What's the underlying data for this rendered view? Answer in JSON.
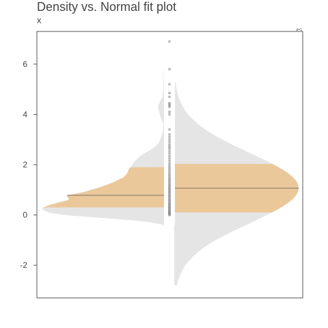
{
  "chart_data": {
    "type": "violin",
    "title": "Density vs. Normal fit plot",
    "subtitle": "x",
    "legend_label": "p=1",
    "legend_position": "top-right",
    "grid": false,
    "ylim": [
      -3.3,
      7.3
    ],
    "y_ticks": [
      -2,
      0,
      2,
      4,
      6
    ],
    "left_half": {
      "name": "Density",
      "median": 0.78,
      "q1": 0.3,
      "q3": 1.9,
      "min": -0.4,
      "max": 7.1
    },
    "right_half": {
      "name": "Normal fit",
      "mean": 1.07,
      "q1": 0.1,
      "q3": 2.03,
      "min": -2.8,
      "max": 5.3
    },
    "points": [
      0.0,
      0.02,
      0.05,
      0.08,
      0.1,
      0.13,
      0.16,
      0.2,
      0.23,
      0.27,
      0.3,
      0.34,
      0.38,
      0.42,
      0.46,
      0.5,
      0.55,
      0.6,
      0.65,
      0.7,
      0.75,
      0.8,
      0.85,
      0.9,
      0.95,
      1.0,
      1.05,
      1.1,
      1.15,
      1.2,
      1.26,
      1.32,
      1.38,
      1.44,
      1.5,
      1.57,
      1.64,
      1.72,
      1.8,
      1.88,
      1.96,
      2.05,
      2.15,
      2.25,
      2.35,
      2.45,
      2.55,
      2.65,
      2.72,
      2.8,
      2.9,
      3.0,
      3.1,
      3.2,
      3.4,
      4.0,
      4.1,
      4.3,
      4.35,
      4.4,
      4.45,
      4.7,
      4.85,
      5.2,
      5.8,
      6.9
    ]
  },
  "colors": {
    "fill_light": "#e5e5e5",
    "fill_quartile": "#ebc89a",
    "median_line": "#5a5a5a",
    "points": "#888888",
    "frame": "#555555",
    "text": "#444444"
  }
}
